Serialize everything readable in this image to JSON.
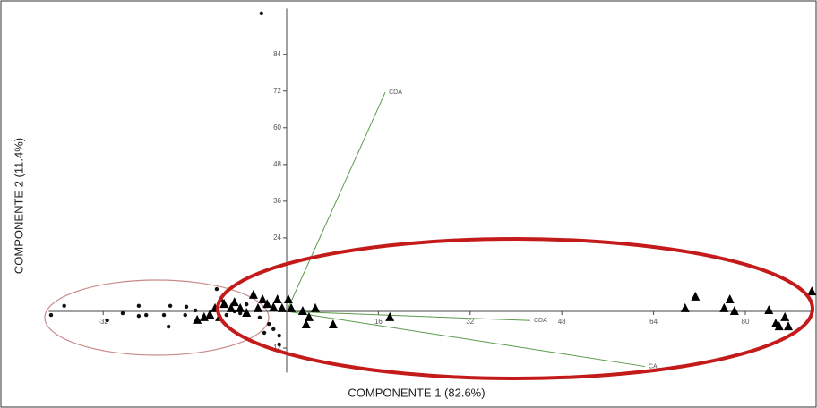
{
  "chart_data": {
    "type": "scatter",
    "xlabel": "COMPONENTE 1 (82.6%)",
    "ylabel": "COMPONENTE 2 (11.4%)",
    "xlim": [
      -41.5,
      92
    ],
    "ylim": [
      -20,
      99
    ],
    "xticks": [
      -32,
      16,
      32,
      48,
      64,
      80
    ],
    "yticks": [
      -12,
      24,
      36,
      48,
      60,
      72,
      84
    ],
    "series": [
      {
        "marker": "circle",
        "color": "#111111",
        "x": [
          -41.1,
          -38.8,
          -31.3,
          -28.6,
          -25.8,
          -25.8,
          -24.5,
          -21.4,
          -20.6,
          -20.3,
          -17.7,
          -17.5,
          -15.9,
          -12.2,
          -11.3,
          -10.5,
          -9.1,
          -8.1,
          -7.0,
          -4.7,
          -3.9,
          -3.1,
          -2.3,
          -1.3,
          -1.3,
          -4.4
        ],
        "values": [
          -1.2,
          1.8,
          -2.9,
          -0.6,
          1.8,
          -1.5,
          -1.2,
          -1.2,
          -5.0,
          1.8,
          -1.2,
          1.5,
          0.3,
          7.3,
          3.5,
          -1.2,
          0,
          -0.6,
          2.3,
          -2.0,
          -7.0,
          -4.1,
          -5.8,
          -7.9,
          -10.8,
          97.4
        ]
      },
      {
        "marker": "triangle",
        "color": "#000000",
        "x": [
          -15.6,
          -14.4,
          -13.4,
          -12.5,
          -11.7,
          -10.9,
          -9.7,
          -9.1,
          -8.1,
          -7.0,
          -5.8,
          -5.0,
          -4.2,
          -3.4,
          -2.3,
          -1.6,
          -0.8,
          0.3,
          0.8,
          2.8,
          3.9,
          5.0,
          3.4,
          8.1,
          18.0,
          69.5,
          71.3,
          76.3,
          77.3,
          78.1,
          84.1,
          85.3,
          86.9,
          85.9,
          87.5,
          91.6
        ],
        "values": [
          -2.9,
          -2.0,
          -1.2,
          0.9,
          -2.0,
          2.3,
          0.9,
          2.9,
          0.9,
          -0.6,
          5.3,
          0.9,
          3.8,
          2.3,
          1.2,
          3.8,
          0.9,
          3.8,
          0.9,
          0,
          -2.0,
          0.9,
          -4.4,
          -4.4,
          -2.0,
          0.9,
          4.7,
          0.9,
          3.8,
          0,
          0.3,
          -4.1,
          -2.0,
          -5.0,
          -5.0,
          6.4
        ]
      }
    ],
    "vectors": [
      {
        "label": "CDA",
        "x": 17.2,
        "y": 71.6
      },
      {
        "label": "CDA",
        "x": 42.5,
        "y": -3
      },
      {
        "label": "CA",
        "x": 62.5,
        "y": -18
      }
    ],
    "vector_color": "#5a9a4a"
  }
}
